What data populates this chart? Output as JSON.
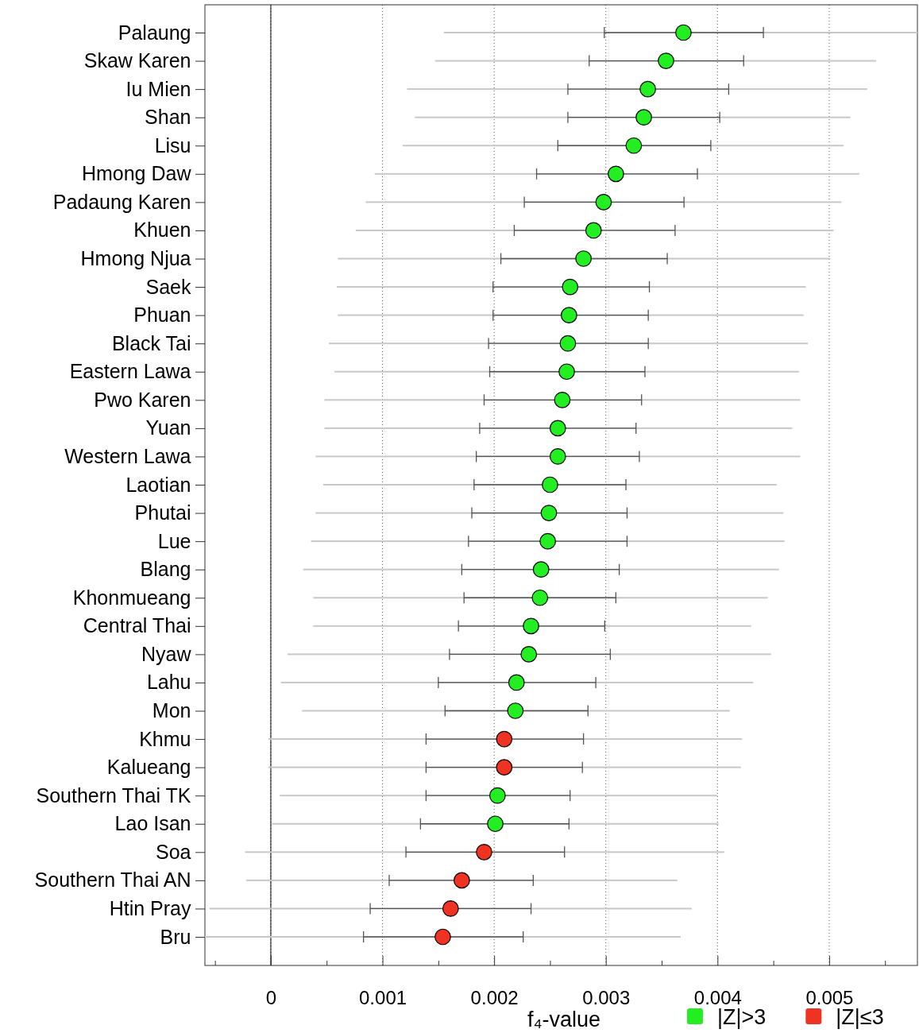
{
  "chart_data": {
    "type": "scatter",
    "orientation": "horizontal",
    "xlabel": "f₄-value",
    "categories": [
      "Palaung",
      "Skaw Karen",
      "Iu Mien",
      "Shan",
      "Lisu",
      "Hmong Daw",
      "Padaung Karen",
      "Khuen",
      "Hmong Njua",
      "Saek",
      "Phuan",
      "Black Tai",
      "Eastern Lawa",
      "Pwo Karen",
      "Yuan",
      "Western Lawa",
      "Laotian",
      "Phutai",
      "Lue",
      "Blang",
      "Khonmueang",
      "Central Thai",
      "Nyaw",
      "Lahu",
      "Mon",
      "Khmu",
      "Kalueang",
      "Southern Thai TK",
      "Lao Isan",
      "Soa",
      "Southern Thai AN",
      "Htin Pray",
      "Bru"
    ],
    "xlim": [
      -0.00059,
      0.00579
    ],
    "xticks": [
      {
        "value": -0.0005,
        "label": null
      },
      0,
      {
        "value": 0.0005,
        "label": null
      },
      0.001,
      {
        "value": 0.0015,
        "label": null
      },
      0.002,
      {
        "value": 0.0025,
        "label": null
      },
      0.003,
      {
        "value": 0.0035,
        "label": null
      },
      0.004,
      {
        "value": 0.0045,
        "label": null
      },
      0.005,
      {
        "value": 0.0055,
        "label": null
      }
    ],
    "grid": "x",
    "legend": "bottom right",
    "tick_labels": "xy",
    "ref_lines": [
      {
        "axis": "x",
        "value": 0,
        "color": "#000000",
        "line_style": "solid"
      }
    ],
    "series": [
      {
        "type": "bar",
        "color": "#c8c8c8",
        "base": [
          0.00155,
          0.00147,
          0.00122,
          0.00129,
          0.00118,
          0.00093,
          0.00085,
          0.00076,
          0.0006,
          0.00059,
          0.0006,
          0.00052,
          0.00057,
          0.00048,
          0.00048,
          0.0004,
          0.00047,
          0.0004,
          0.00036,
          0.00029,
          0.00038,
          0.00038,
          0.00015,
          9e-05,
          0.00028,
          -2e-05,
          -2e-05,
          8e-05,
          1e-05,
          -0.00023,
          -0.00022,
          -0.00055,
          -0.00059
        ],
        "values": [
          0.00424,
          0.00395,
          0.00412,
          0.0039,
          0.00395,
          0.00434,
          0.00426,
          0.00428,
          0.00441,
          0.0042,
          0.00417,
          0.00429,
          0.00416,
          0.00426,
          0.00419,
          0.00434,
          0.00406,
          0.00419,
          0.00424,
          0.00426,
          0.00407,
          0.00392,
          0.00433,
          0.00423,
          0.00383,
          0.00424,
          0.00423,
          0.00392,
          0.004,
          0.00429,
          0.00386,
          0.00432,
          0.00426
        ]
      },
      {
        "name": "|Z|>3",
        "color": "#22ee22",
        "marker": "circle",
        "values": [
          0.003695,
          0.003539,
          0.003376,
          0.00334,
          0.00325,
          0.00309,
          0.00298,
          0.00289,
          0.0028,
          0.00268,
          0.00267,
          0.00266,
          0.00265,
          0.00261,
          0.00257,
          0.00257,
          0.0025,
          0.00249,
          0.00248,
          0.00242,
          0.00241,
          0.00233,
          0.00231,
          0.0022,
          0.00219,
          null,
          null,
          0.00203,
          0.00201,
          null,
          null,
          null,
          null
        ],
        "errors": [
          [
            0.002986,
            0.004411
          ],
          [
            0.002851,
            0.004234
          ],
          [
            0.00266,
            0.0041
          ],
          [
            0.00266,
            0.00402
          ],
          [
            0.00257,
            0.00394
          ],
          [
            0.00238,
            0.00382
          ],
          [
            0.00227,
            0.0037
          ],
          [
            0.00218,
            0.00362
          ],
          [
            0.00206,
            0.00355
          ],
          [
            0.00199,
            0.00339
          ],
          [
            0.00199,
            0.00338
          ],
          [
            0.00195,
            0.00338
          ],
          [
            0.00196,
            0.00335
          ],
          [
            0.00191,
            0.00332
          ],
          [
            0.00187,
            0.00327
          ],
          [
            0.00184,
            0.0033
          ],
          [
            0.00182,
            0.00318
          ],
          [
            0.0018,
            0.00319
          ],
          [
            0.00177,
            0.00319
          ],
          [
            0.00171,
            0.00312
          ],
          [
            0.00173,
            0.00309
          ],
          [
            0.00168,
            0.00299
          ],
          [
            0.0016,
            0.00304
          ],
          [
            0.0015,
            0.00291
          ],
          [
            0.00156,
            0.00284
          ],
          null,
          null,
          [
            0.00139,
            0.00268
          ],
          [
            0.00134,
            0.00267
          ],
          null,
          null,
          null,
          null
        ]
      },
      {
        "name": "|Z|≤3",
        "color": "#ee3322",
        "marker": "circle",
        "values": [
          null,
          null,
          null,
          null,
          null,
          null,
          null,
          null,
          null,
          null,
          null,
          null,
          null,
          null,
          null,
          null,
          null,
          null,
          null,
          null,
          null,
          null,
          null,
          null,
          null,
          0.00209,
          0.00209,
          null,
          null,
          0.00191,
          0.00171,
          0.00161,
          0.00154
        ],
        "errors": [
          null,
          null,
          null,
          null,
          null,
          null,
          null,
          null,
          null,
          null,
          null,
          null,
          null,
          null,
          null,
          null,
          null,
          null,
          null,
          null,
          null,
          null,
          null,
          null,
          null,
          [
            0.00139,
            0.0028
          ],
          [
            0.00139,
            0.00279
          ],
          null,
          null,
          [
            0.00121,
            0.00263
          ],
          [
            0.00106,
            0.00235
          ],
          [
            0.00089,
            0.00233
          ],
          [
            0.00083,
            0.00226
          ]
        ]
      }
    ]
  }
}
